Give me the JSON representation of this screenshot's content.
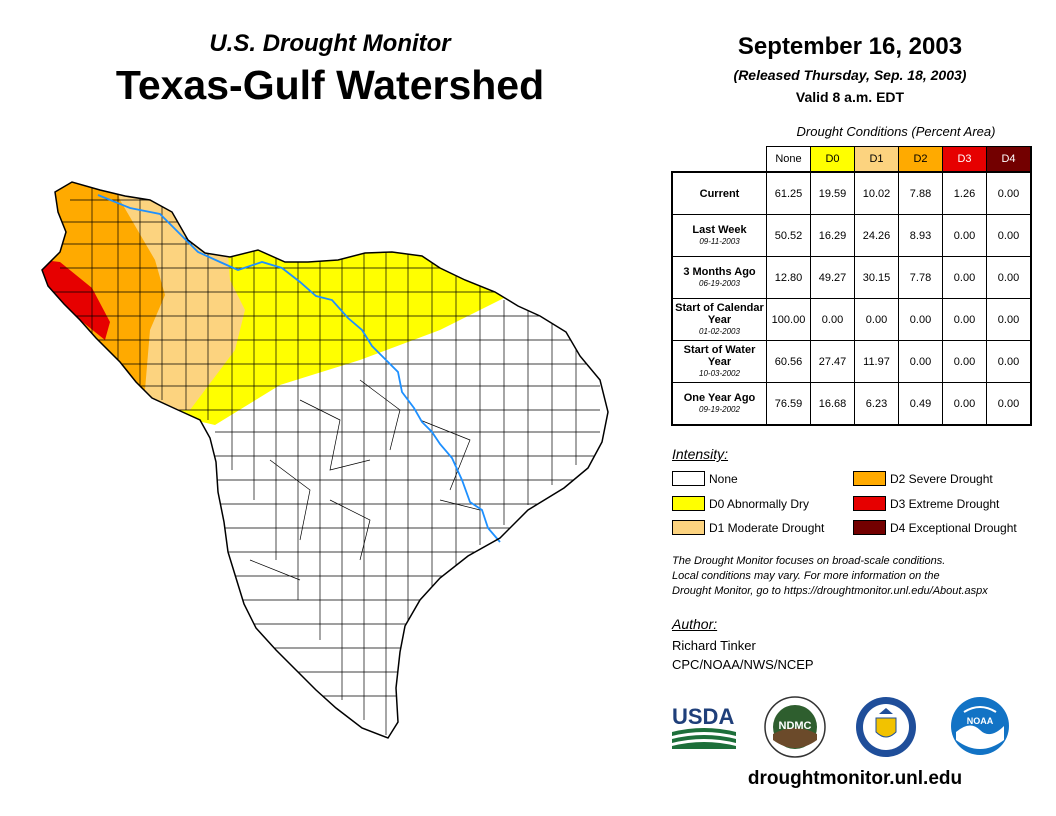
{
  "header": {
    "monitor_title": "U.S. Drought Monitor",
    "region_title": "Texas-Gulf Watershed",
    "date": "September 16, 2003",
    "released": "(Released Thursday, Sep. 18, 2003)",
    "valid": "Valid 8 a.m. EDT"
  },
  "table": {
    "caption": "Drought Conditions (Percent Area)",
    "columns": [
      "None",
      "D0",
      "D1",
      "D2",
      "D3",
      "D4"
    ],
    "column_colors": [
      "#ffffff",
      "#ffff00",
      "#fcd37f",
      "#ffaa00",
      "#e60000",
      "#730000"
    ],
    "rows": [
      {
        "label": "Current",
        "date": "",
        "values": [
          "61.25",
          "19.59",
          "10.02",
          "7.88",
          "1.26",
          "0.00"
        ]
      },
      {
        "label": "Last Week",
        "date": "09-11-2003",
        "values": [
          "50.52",
          "16.29",
          "24.26",
          "8.93",
          "0.00",
          "0.00"
        ]
      },
      {
        "label": "3 Months Ago",
        "date": "06-19-2003",
        "values": [
          "12.80",
          "49.27",
          "30.15",
          "7.78",
          "0.00",
          "0.00"
        ]
      },
      {
        "label": "Start of Calendar Year",
        "date": "01-02-2003",
        "values": [
          "100.00",
          "0.00",
          "0.00",
          "0.00",
          "0.00",
          "0.00"
        ]
      },
      {
        "label": "Start of Water Year",
        "date": "10-03-2002",
        "values": [
          "60.56",
          "27.47",
          "11.97",
          "0.00",
          "0.00",
          "0.00"
        ]
      },
      {
        "label": "One Year Ago",
        "date": "09-19-2002",
        "values": [
          "76.59",
          "16.68",
          "6.23",
          "0.49",
          "0.00",
          "0.00"
        ]
      }
    ]
  },
  "legend": {
    "title": "Intensity:",
    "items": [
      {
        "label": "None",
        "color": "#ffffff"
      },
      {
        "label": "D0 Abnormally Dry",
        "color": "#ffff00"
      },
      {
        "label": "D1 Moderate Drought",
        "color": "#fcd37f"
      },
      {
        "label": "D2 Severe Drought",
        "color": "#ffaa00"
      },
      {
        "label": "D3 Extreme Drought",
        "color": "#e60000"
      },
      {
        "label": "D4 Exceptional Drought",
        "color": "#730000"
      }
    ]
  },
  "note": {
    "line1": "The Drought Monitor focuses on broad-scale conditions.",
    "line2": "Local conditions may vary. For more information on the",
    "line3": "Drought Monitor, go to https://droughtmonitor.unl.edu/About.aspx"
  },
  "author": {
    "heading": "Author:",
    "name": "Richard Tinker",
    "org": "CPC/NOAA/NWS/NCEP"
  },
  "logos": {
    "usda": "USDA",
    "ndmc": "NDMC",
    "noaa": "NOAA",
    "usda_icon": "usda-logo",
    "ndmc_icon": "ndmc-logo",
    "commerce_icon": "dept-of-commerce-seal",
    "noaa_icon": "noaa-logo"
  },
  "url": "droughtmonitor.unl.edu"
}
